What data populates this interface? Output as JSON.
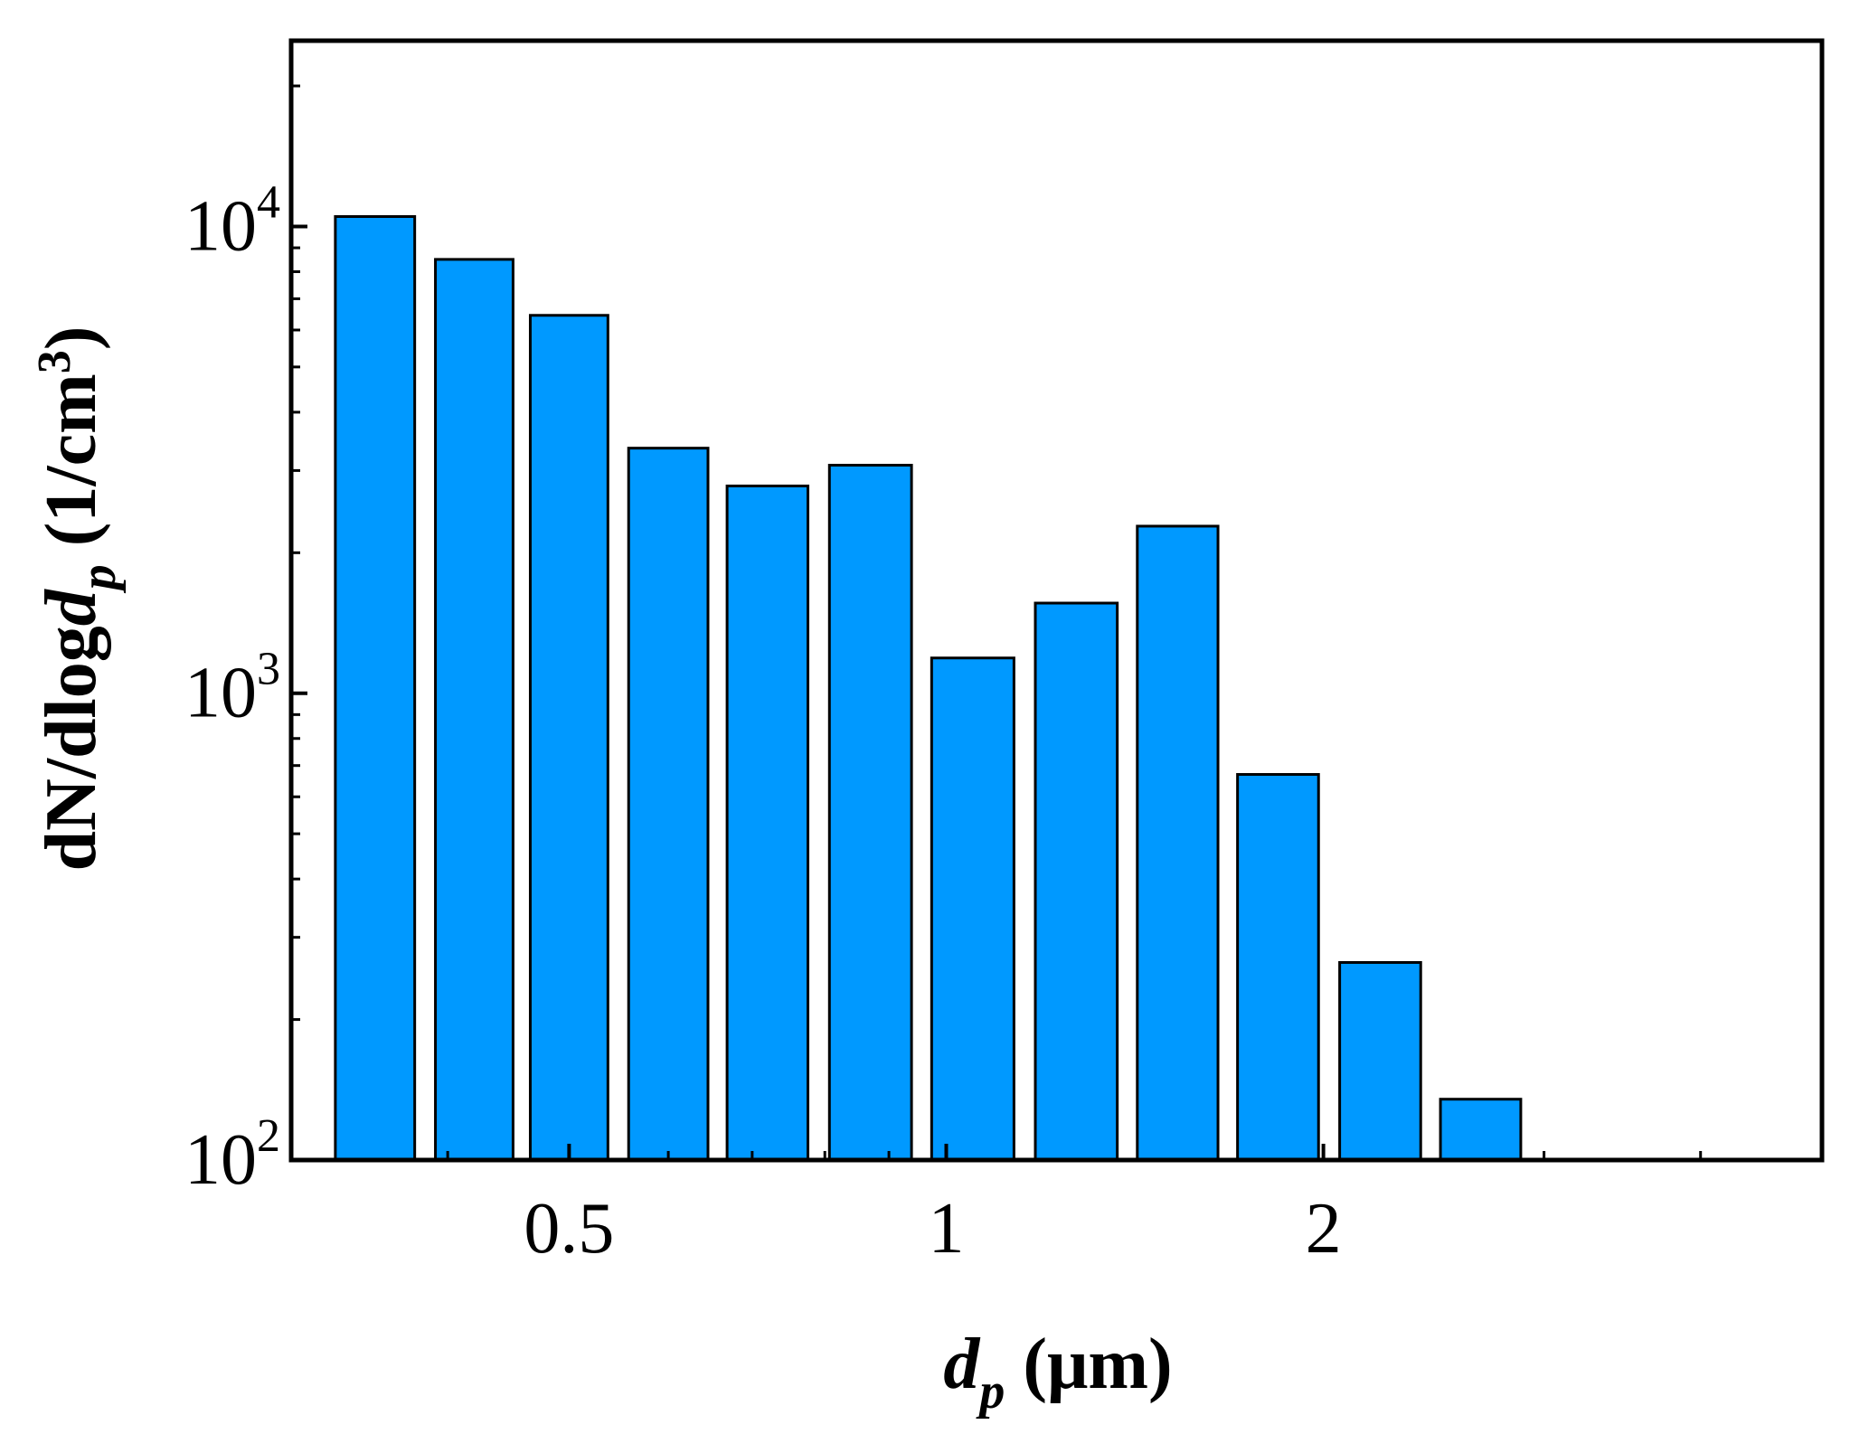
{
  "chart_data": {
    "type": "bar",
    "y_scale": "log",
    "x_scale": "log",
    "ylim": [
      100,
      25000
    ],
    "xlim": [
      0.3,
      5.0
    ],
    "x_ticks": [
      {
        "value": 0.5,
        "label": "0.5"
      },
      {
        "value": 1,
        "label": "1"
      },
      {
        "value": 2,
        "label": "2"
      }
    ],
    "y_ticks": [
      {
        "value": 100,
        "base": "10",
        "exp": "2"
      },
      {
        "value": 1000,
        "base": "10",
        "exp": "3"
      },
      {
        "value": 10000,
        "base": "10",
        "exp": "4"
      }
    ],
    "xlabel": {
      "main": "d",
      "sub": "p",
      "unit": " (μm)"
    },
    "ylabel": {
      "prefix": "dN/dlog",
      "main": "d",
      "sub": "p",
      "unit": " (1/cm",
      "sup": "3",
      "close": ")"
    },
    "bars": [
      {
        "x": 0.35,
        "value": 10500
      },
      {
        "x": 0.42,
        "value": 8500
      },
      {
        "x": 0.5,
        "value": 6450
      },
      {
        "x": 0.6,
        "value": 3350
      },
      {
        "x": 0.72,
        "value": 2780
      },
      {
        "x": 0.87,
        "value": 3080
      },
      {
        "x": 1.05,
        "value": 1190
      },
      {
        "x": 1.27,
        "value": 1560
      },
      {
        "x": 1.53,
        "value": 2280
      },
      {
        "x": 1.84,
        "value": 670
      },
      {
        "x": 2.22,
        "value": 265
      },
      {
        "x": 2.67,
        "value": 135
      }
    ],
    "grid": false,
    "bar_color": "#0099ff"
  }
}
